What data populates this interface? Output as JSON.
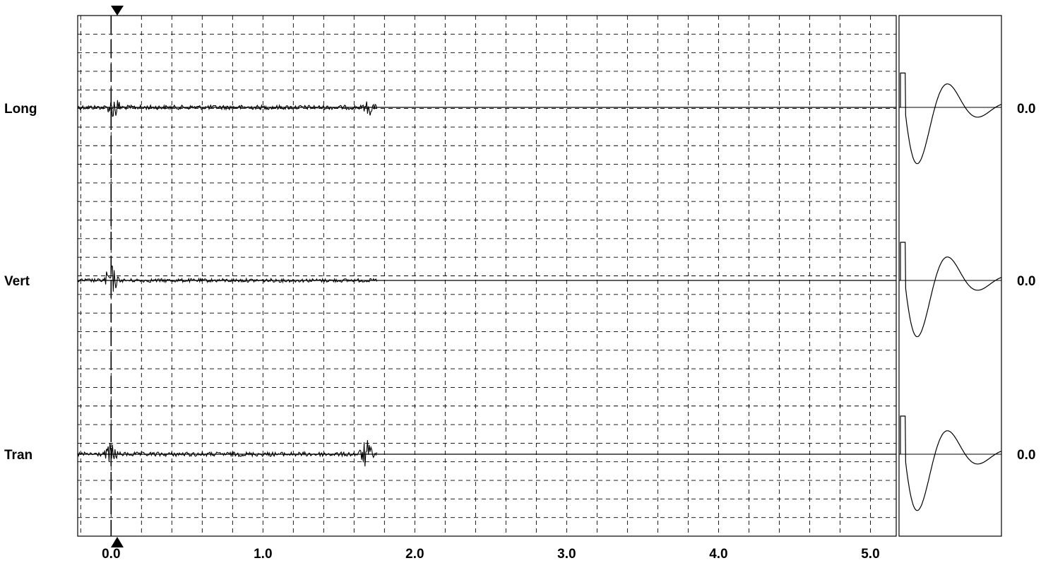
{
  "chart_data": {
    "type": "line",
    "title": "",
    "xlabel": "",
    "ylabel": "",
    "xlim": [
      -0.22,
      5.17
    ],
    "x_ticks": [
      0.0,
      1.0,
      2.0,
      3.0,
      4.0,
      5.0
    ],
    "x_tick_labels": [
      "0.0",
      "1.0",
      "2.0",
      "3.0",
      "4.0",
      "5.0"
    ],
    "grid": true,
    "cursor_x": 0.0,
    "series": [
      {
        "name": "Long",
        "baseline_value": "0.0",
        "signal_start": -0.22,
        "signal_end": 1.75,
        "noise_amplitude": 0.012,
        "bursts": [
          {
            "x": 0.02,
            "amp": 0.08
          },
          {
            "x": 1.7,
            "amp": 0.05
          }
        ],
        "response_peak": 0.18,
        "response_trough": -0.42,
        "response_overshoot": 0.11
      },
      {
        "name": "Vert",
        "baseline_value": "0.0",
        "signal_start": -0.22,
        "signal_end": 1.75,
        "noise_amplitude": 0.01,
        "bursts": [
          {
            "x": 0.0,
            "amp": 0.1
          }
        ],
        "response_peak": 0.2,
        "response_trough": -0.42,
        "response_overshoot": 0.11
      },
      {
        "name": "Tran",
        "baseline_value": "0.0",
        "signal_start": -0.22,
        "signal_end": 1.75,
        "noise_amplitude": 0.012,
        "bursts": [
          {
            "x": 0.0,
            "amp": 0.07
          },
          {
            "x": 1.68,
            "amp": 0.09
          }
        ],
        "response_peak": 0.2,
        "response_trough": -0.42,
        "response_overshoot": 0.11
      }
    ]
  },
  "labels": {
    "ch1": "Long",
    "ch2": "Vert",
    "ch3": "Tran",
    "val1": "0.0",
    "val2": "0.0",
    "val3": "0.0"
  }
}
